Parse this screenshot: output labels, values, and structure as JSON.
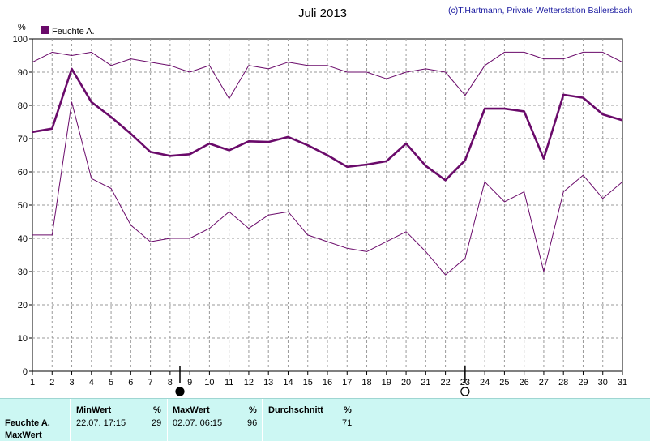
{
  "window": {
    "title": "Juli 2013",
    "copyright": "(c)T.Hartmann, Private Wetterstation Ballersbach"
  },
  "legend": {
    "label": "Feuchte A.",
    "color": "#6a0a6a"
  },
  "colors": {
    "series": "#6a0a6a",
    "grid": "#9a9a9a",
    "panel": "#ccf7f3"
  },
  "icons": {
    "new_moon": "new-moon-icon",
    "full_moon": "full-moon-icon"
  },
  "chart_data": {
    "type": "line",
    "title": "Juli 2013",
    "ylabel": "%",
    "xlabel": "",
    "ylim": [
      0,
      100
    ],
    "yticks": [
      "0",
      "10",
      "20",
      "30",
      "40",
      "50",
      "60",
      "70",
      "80",
      "90",
      "100"
    ],
    "x": [
      "1",
      "2",
      "3",
      "4",
      "5",
      "6",
      "7",
      "8",
      "9",
      "10",
      "11",
      "12",
      "13",
      "14",
      "15",
      "16",
      "17",
      "18",
      "19",
      "20",
      "21",
      "22",
      "23",
      "24",
      "25",
      "26",
      "27",
      "28",
      "29",
      "30",
      "31"
    ],
    "grid": true,
    "legend_position": "top-left",
    "moon_markers": [
      {
        "type": "new_moon",
        "x": 8.5
      },
      {
        "type": "full_moon",
        "x": 23
      }
    ],
    "series": [
      {
        "name": "Feuchte A.",
        "role": "max",
        "values": [
          93,
          96,
          95,
          96,
          92,
          94,
          93,
          92,
          90,
          92,
          82,
          92,
          91,
          93,
          92,
          92,
          90,
          90,
          88,
          90,
          91,
          90,
          83,
          92,
          96,
          96,
          94,
          94,
          96,
          96,
          93
        ]
      },
      {
        "name": "Feuchte A.",
        "role": "mean",
        "values": [
          72,
          73,
          91,
          81,
          76.5,
          71.5,
          66,
          64.8,
          65.3,
          68.5,
          66.5,
          69.2,
          69,
          70.5,
          68,
          65,
          61.5,
          62.2,
          63.2,
          68.5,
          61.8,
          57.5,
          63.5,
          79,
          79,
          78.2,
          64,
          83.2,
          82.3,
          77.3,
          75.5
        ]
      },
      {
        "name": "Feuchte A.",
        "role": "min",
        "values": [
          41,
          41,
          81,
          58,
          55,
          44,
          39,
          40,
          40,
          43,
          48,
          43,
          47,
          48,
          41,
          39,
          37,
          36,
          39,
          42,
          36,
          29,
          34,
          57,
          51,
          54,
          30,
          54,
          59,
          52,
          57
        ]
      }
    ]
  },
  "stats": {
    "row_label": "Feuchte A.",
    "row_label2": "MaxWert",
    "min_header": "MinWert",
    "min_unit": "%",
    "min_time": "22.07.  17:15",
    "min_value": "29",
    "max_header": "MaxWert",
    "max_unit": "%",
    "max_time": "02.07.  06:15",
    "max_value": "96",
    "avg_header": "Durchschnitt",
    "avg_unit": "%",
    "avg_value": "71"
  }
}
